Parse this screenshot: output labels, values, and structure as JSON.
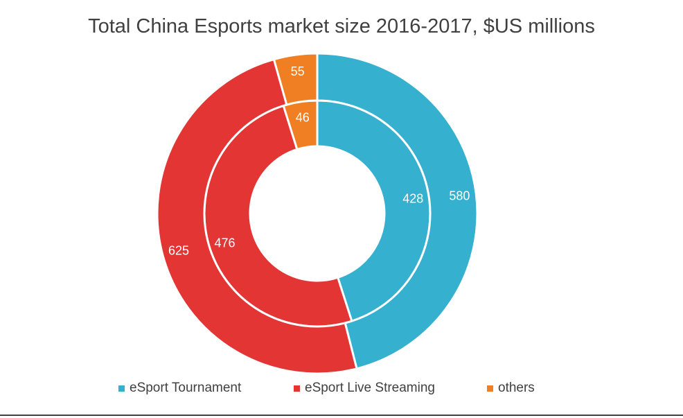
{
  "chart_data": {
    "type": "pie",
    "subtype": "donut",
    "title": "Total China Esports market size 2016-2017, $US millions",
    "categories": [
      "eSport Tournament",
      "eSport Live Streaming",
      "others"
    ],
    "colors": [
      "#35B0CE",
      "#E43535",
      "#F07F24"
    ],
    "series": [
      {
        "ring": "inner",
        "values": [
          428,
          476,
          46
        ]
      },
      {
        "ring": "outer",
        "values": [
          580,
          625,
          55
        ]
      }
    ],
    "legend_position": "bottom"
  }
}
